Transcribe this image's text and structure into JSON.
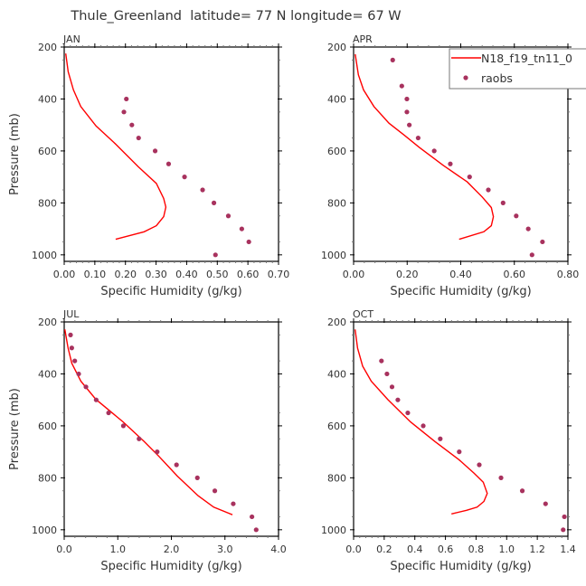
{
  "title": "Thule_Greenland  latitude= 77 N longitude= 67 W",
  "colors": {
    "model": "#FF0000",
    "obs": "#A8325E",
    "axis": "#000000"
  },
  "legend": {
    "model_label": "N18_f19_tn11_0",
    "obs_label": "raobs",
    "placement": "top-right"
  },
  "chart_data": [
    {
      "type": "line",
      "panel": "JAN",
      "xlabel": "Specific Humidity (g/kg)",
      "ylabel": "Pressure (mb)",
      "xlim": [
        0,
        0.7
      ],
      "ylim": [
        1025,
        200
      ],
      "xticks": [
        0,
        0.1,
        0.2,
        0.3,
        0.4,
        0.5,
        0.6,
        0.7
      ],
      "xtick_labels": [
        "0.00",
        "0.10",
        "0.20",
        "0.30",
        "0.40",
        "0.50",
        "0.60",
        "0.70"
      ],
      "yticks": [
        200,
        400,
        600,
        800,
        1000
      ],
      "ytick_labels": [
        "200",
        "400",
        "600",
        "800",
        "1000"
      ],
      "model": {
        "q": [
          0.005,
          0.013,
          0.03,
          0.054,
          0.104,
          0.163,
          0.242,
          0.301,
          0.325,
          0.332,
          0.325,
          0.301,
          0.261,
          0.168
        ],
        "p": [
          225,
          295,
          365,
          429,
          504,
          568,
          661,
          725,
          783,
          816,
          853,
          888,
          911,
          940
        ]
      },
      "obs": {
        "q": [
          0.203,
          0.195,
          0.221,
          0.243,
          0.297,
          0.341,
          0.393,
          0.452,
          0.489,
          0.536,
          0.58,
          0.603,
          0.494
        ],
        "p": [
          400,
          450,
          500,
          550,
          600,
          650,
          700,
          750,
          800,
          850,
          900,
          950,
          1000
        ]
      }
    },
    {
      "type": "line",
      "panel": "APR",
      "xlabel": "Specific Humidity (g/kg)",
      "ylabel": "",
      "xlim": [
        0,
        0.8
      ],
      "ylim": [
        1025,
        200
      ],
      "xticks": [
        0,
        0.2,
        0.4,
        0.6,
        0.8
      ],
      "xtick_labels": [
        "0.00",
        "0.20",
        "0.40",
        "0.60",
        "0.80"
      ],
      "yticks": [
        200,
        400,
        600,
        800,
        1000
      ],
      "ytick_labels": [
        "200",
        "400",
        "600",
        "800",
        "1000"
      ],
      "model": {
        "q": [
          0.006,
          0.018,
          0.037,
          0.076,
          0.132,
          0.189,
          0.245,
          0.334,
          0.424,
          0.48,
          0.514,
          0.522,
          0.514,
          0.486,
          0.394
        ],
        "p": [
          228,
          307,
          365,
          429,
          493,
          539,
          586,
          655,
          719,
          777,
          818,
          853,
          888,
          911,
          940
        ]
      },
      "obs": {
        "q": [
          0.146,
          0.18,
          0.199,
          0.199,
          0.208,
          0.241,
          0.301,
          0.361,
          0.433,
          0.503,
          0.558,
          0.607,
          0.652,
          0.705,
          0.666
        ],
        "p": [
          250,
          350,
          400,
          450,
          500,
          550,
          600,
          650,
          700,
          750,
          800,
          850,
          900,
          950,
          1000
        ]
      }
    },
    {
      "type": "line",
      "panel": "JUL",
      "xlabel": "Specific Humidity (g/kg)",
      "ylabel": "Pressure (mb)",
      "xlim": [
        0,
        4.0
      ],
      "ylim": [
        1025,
        200
      ],
      "xticks": [
        0,
        1,
        2,
        3,
        4
      ],
      "xtick_labels": [
        "0.0",
        "1.0",
        "2.0",
        "3.0",
        "4.0"
      ],
      "yticks": [
        200,
        400,
        600,
        800,
        1000
      ],
      "ytick_labels": [
        "200",
        "400",
        "600",
        "800",
        "1000"
      ],
      "model": {
        "q": [
          0.011,
          0.073,
          0.141,
          0.31,
          0.59,
          1.1,
          1.49,
          1.77,
          2.11,
          2.5,
          2.79,
          3.14
        ],
        "p": [
          229,
          301,
          359,
          428,
          498,
          585,
          660,
          718,
          793,
          869,
          913,
          942
        ]
      },
      "obs": {
        "q": [
          0.118,
          0.141,
          0.197,
          0.27,
          0.406,
          0.597,
          0.828,
          1.104,
          1.397,
          1.735,
          2.096,
          2.485,
          2.811,
          3.155,
          3.504,
          3.583
        ],
        "p": [
          250,
          300,
          350,
          400,
          450,
          500,
          550,
          600,
          650,
          700,
          750,
          800,
          850,
          900,
          950,
          1000
        ]
      }
    },
    {
      "type": "line",
      "panel": "OCT",
      "xlabel": "Specific Humidity (g/kg)",
      "ylabel": "",
      "xlim": [
        0,
        1.4
      ],
      "ylim": [
        1025,
        200
      ],
      "xticks": [
        0,
        0.2,
        0.4,
        0.6,
        0.8,
        1.0,
        1.2,
        1.4
      ],
      "xtick_labels": [
        "0.0",
        "0.2",
        "0.4",
        "0.6",
        "0.8",
        "1.0",
        "1.2",
        "1.4"
      ],
      "yticks": [
        200,
        400,
        600,
        800,
        1000
      ],
      "ytick_labels": [
        "200",
        "400",
        "600",
        "800",
        "1000"
      ],
      "model": {
        "q": [
          0.01,
          0.026,
          0.059,
          0.115,
          0.224,
          0.372,
          0.53,
          0.688,
          0.787,
          0.847,
          0.873,
          0.851,
          0.807,
          0.738,
          0.639
        ],
        "p": [
          229,
          301,
          370,
          428,
          499,
          585,
          660,
          730,
          782,
          817,
          860,
          891,
          913,
          925,
          939
        ]
      },
      "obs": {
        "q": [
          0.182,
          0.218,
          0.251,
          0.289,
          0.354,
          0.455,
          0.566,
          0.69,
          0.821,
          0.963,
          1.102,
          1.254,
          1.377,
          1.369
        ],
        "p": [
          350,
          400,
          450,
          500,
          550,
          600,
          650,
          700,
          750,
          800,
          850,
          900,
          950,
          1000
        ]
      }
    }
  ]
}
